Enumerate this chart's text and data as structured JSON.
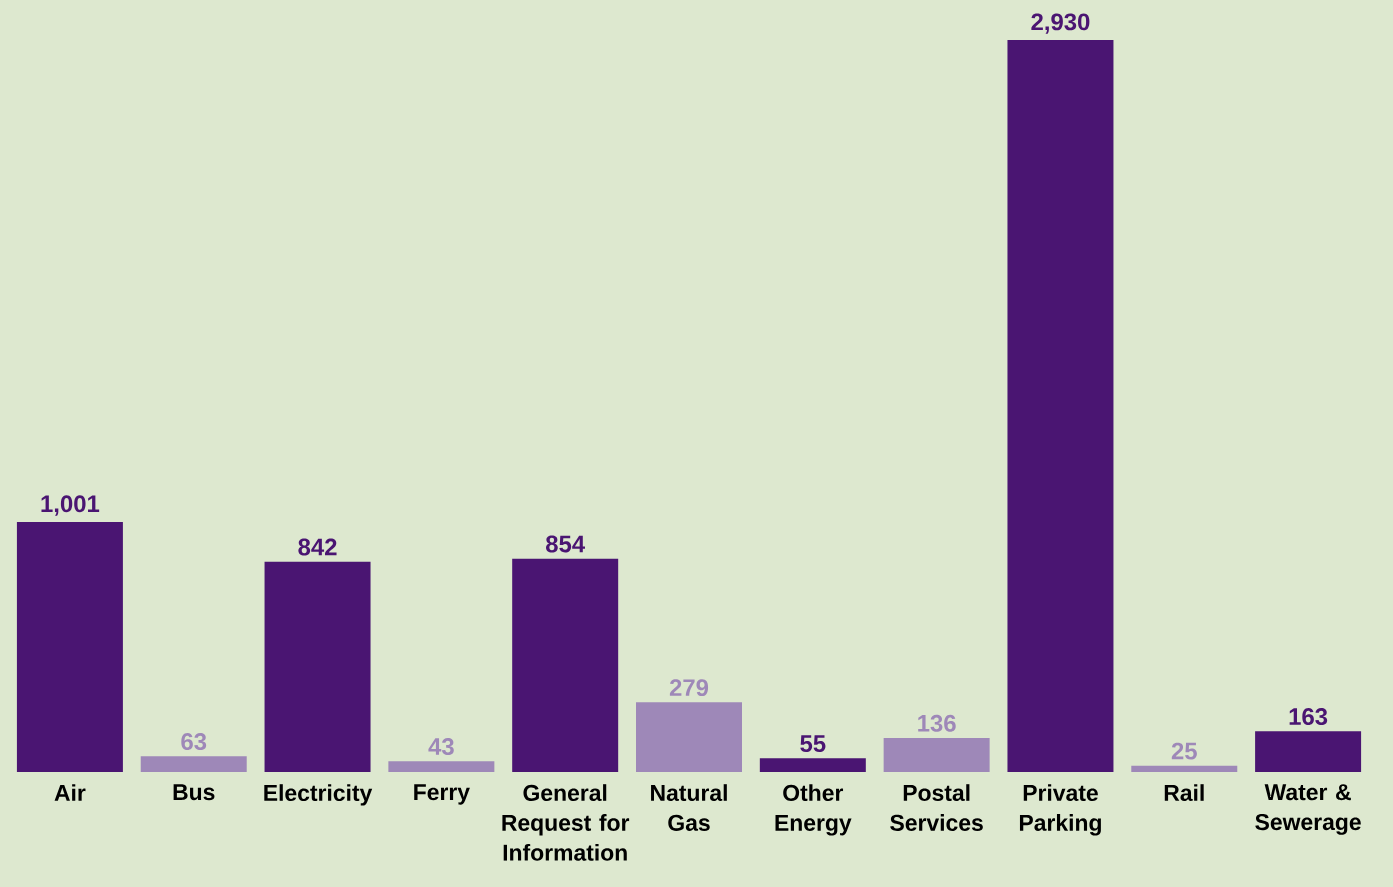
{
  "chart_data": {
    "type": "bar",
    "categories": [
      "Air",
      "Bus",
      "Electricity",
      "Ferry",
      "General Request for Information",
      "Natural Gas",
      "Other Energy",
      "Postal Services",
      "Private Parking",
      "Rail",
      "Water & Sewerage"
    ],
    "values": [
      1001,
      63,
      842,
      43,
      854,
      279,
      55,
      136,
      2930,
      25,
      163
    ],
    "value_labels": [
      "1,001",
      "63",
      "842",
      "43",
      "854",
      "279",
      "55",
      "136",
      "2,930",
      "25",
      "163"
    ],
    "colors": [
      "#4a1572",
      "#9e88b8",
      "#4a1572",
      "#9e88b8",
      "#4a1572",
      "#9e88b8",
      "#4a1572",
      "#9e88b8",
      "#4a1572",
      "#9e88b8",
      "#4a1572"
    ],
    "orientation": "vertical"
  }
}
